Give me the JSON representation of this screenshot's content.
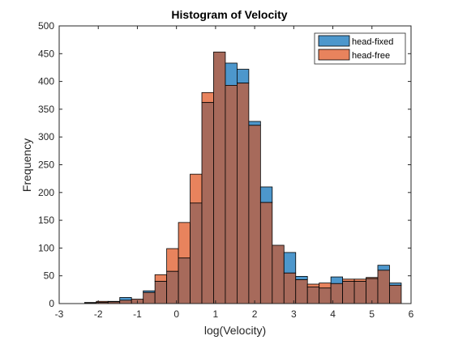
{
  "chart_data": {
    "type": "bar",
    "title": "Histogram of Velocity",
    "xlabel": "log(Velocity)",
    "ylabel": "Frequency",
    "xlim": [
      -3,
      6
    ],
    "ylim": [
      0,
      500
    ],
    "xticks": [
      -3,
      -2,
      -1,
      0,
      1,
      2,
      3,
      4,
      5,
      6
    ],
    "yticks": [
      0,
      50,
      100,
      150,
      200,
      250,
      300,
      350,
      400,
      450,
      500
    ],
    "grid": false,
    "legend": "top-right",
    "bin_edges": [
      -2.35,
      -2.05,
      -1.75,
      -1.45,
      -1.15,
      -0.85,
      -0.55,
      -0.25,
      0.05,
      0.35,
      0.65,
      0.95,
      1.25,
      1.55,
      1.85,
      2.15,
      2.45,
      2.75,
      3.05,
      3.35,
      3.65,
      3.95,
      4.25,
      4.55,
      4.85,
      5.15,
      5.45,
      5.75
    ],
    "series": [
      {
        "name": "head-fixed",
        "color": "#4d97cc",
        "values": [
          2,
          2,
          4,
          11,
          8,
          23,
          40,
          58,
          82,
          181,
          362,
          453,
          433,
          422,
          328,
          210,
          105,
          92,
          49,
          30,
          28,
          48,
          40,
          40,
          45,
          69,
          37
        ]
      },
      {
        "name": "head-free",
        "color": "#e8835d",
        "values": [
          1,
          4,
          3,
          6,
          8,
          20,
          52,
          99,
          146,
          233,
          380,
          453,
          393,
          397,
          321,
          182,
          105,
          55,
          43,
          35,
          37,
          36,
          44,
          44,
          47,
          60,
          33
        ]
      }
    ],
    "overlap_color": "#a76a5b"
  }
}
